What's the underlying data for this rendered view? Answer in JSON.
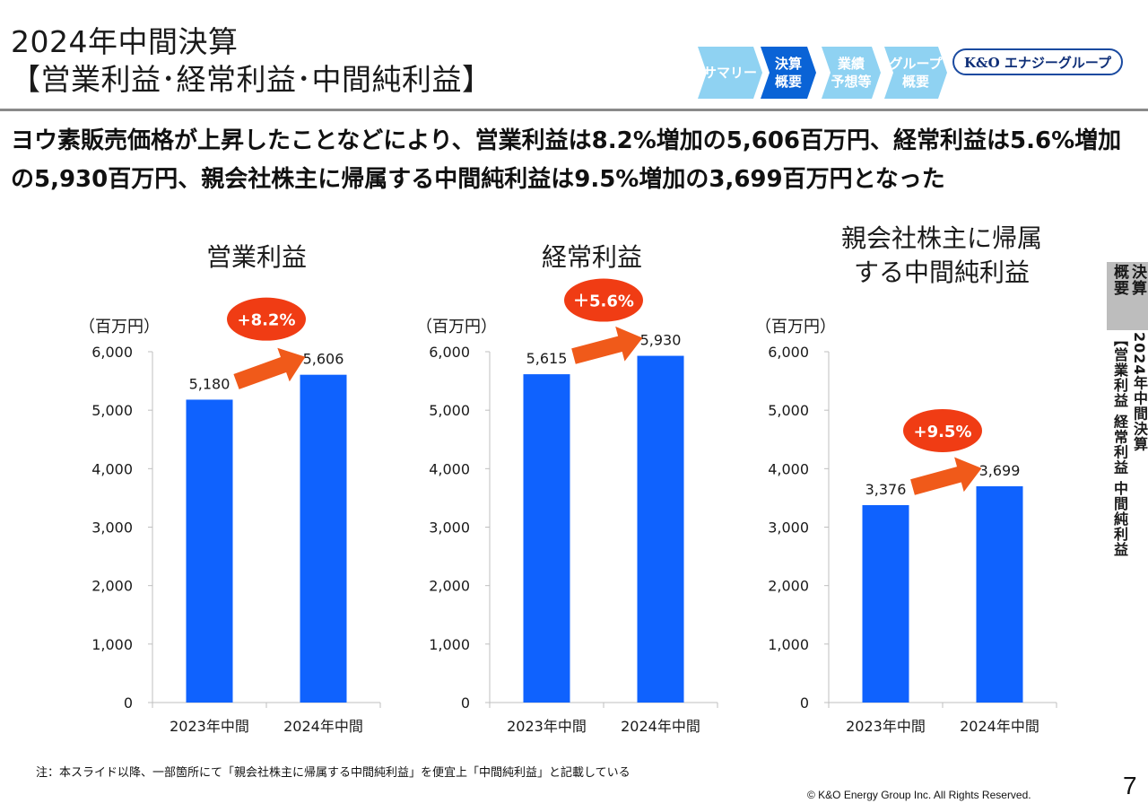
{
  "header": {
    "title_line1": "2024年中間決算",
    "title_line2": "【営業利益･経常利益･中間純利益】"
  },
  "nav_steps": [
    {
      "label": "サマリー",
      "color": "#8fd2f2"
    },
    {
      "label": "決算\n概要",
      "color": "#0a63d6"
    },
    {
      "label": "業績\n予想等",
      "color": "#8fd2f2"
    },
    {
      "label": "グループ\n概要",
      "color": "#8fd2f2"
    }
  ],
  "logo": "K&O エナジーグループ",
  "lead_text": "ヨウ素販売価格が上昇したことなどにより、営業利益は8.2%増加の5,606百万円、経常利益は5.6%増加の5,930百万円、親会社株主に帰属する中間純利益は9.5%増加の3,699百万円となった",
  "side": {
    "tab_line1": "決算",
    "tab_line2": "概要",
    "vertical_title": "2024年中間決算",
    "vertical_sub": "【営業利益 経常利益 中間純利益"
  },
  "footnote": "注：本スライド以降、一部箇所にて「親会社株主に帰属する中間純利益」を便宜上「中間純利益」と記載している",
  "copyright": "© K&O Energy Group Inc. All Rights Reserved.",
  "page_number": "7",
  "colors": {
    "bar": "#0f62fe",
    "arrow": "#f05a1a",
    "badge": "#f03c14"
  },
  "chart_data": [
    {
      "type": "bar",
      "title": "営業利益",
      "ylabel": "（百万円）",
      "categories": [
        "2023年中間",
        "2024年中間"
      ],
      "values": [
        5180,
        5606
      ],
      "value_labels": [
        "5,180",
        "5,606"
      ],
      "ylim": [
        0,
        6000
      ],
      "yticks": [
        "0",
        "1,000",
        "2,000",
        "3,000",
        "4,000",
        "5,000",
        "6,000"
      ],
      "change_label": "+8.2%",
      "grid": false
    },
    {
      "type": "bar",
      "title": "経常利益",
      "ylabel": "（百万円）",
      "categories": [
        "2023年中間",
        "2024年中間"
      ],
      "values": [
        5615,
        5930
      ],
      "value_labels": [
        "5,615",
        "5,930"
      ],
      "ylim": [
        0,
        6000
      ],
      "yticks": [
        "0",
        "1,000",
        "2,000",
        "3,000",
        "4,000",
        "5,000",
        "6,000"
      ],
      "change_label": "＋5.6%",
      "grid": false
    },
    {
      "type": "bar",
      "title": "親会社株主に帰属\nする中間純利益",
      "ylabel": "（百万円）",
      "categories": [
        "2023年中間",
        "2024年中間"
      ],
      "values": [
        3376,
        3699
      ],
      "value_labels": [
        "3,376",
        "3,699"
      ],
      "ylim": [
        0,
        6000
      ],
      "yticks": [
        "0",
        "1,000",
        "2,000",
        "3,000",
        "4,000",
        "5,000",
        "6,000"
      ],
      "change_label": "+9.5%",
      "grid": false
    }
  ]
}
